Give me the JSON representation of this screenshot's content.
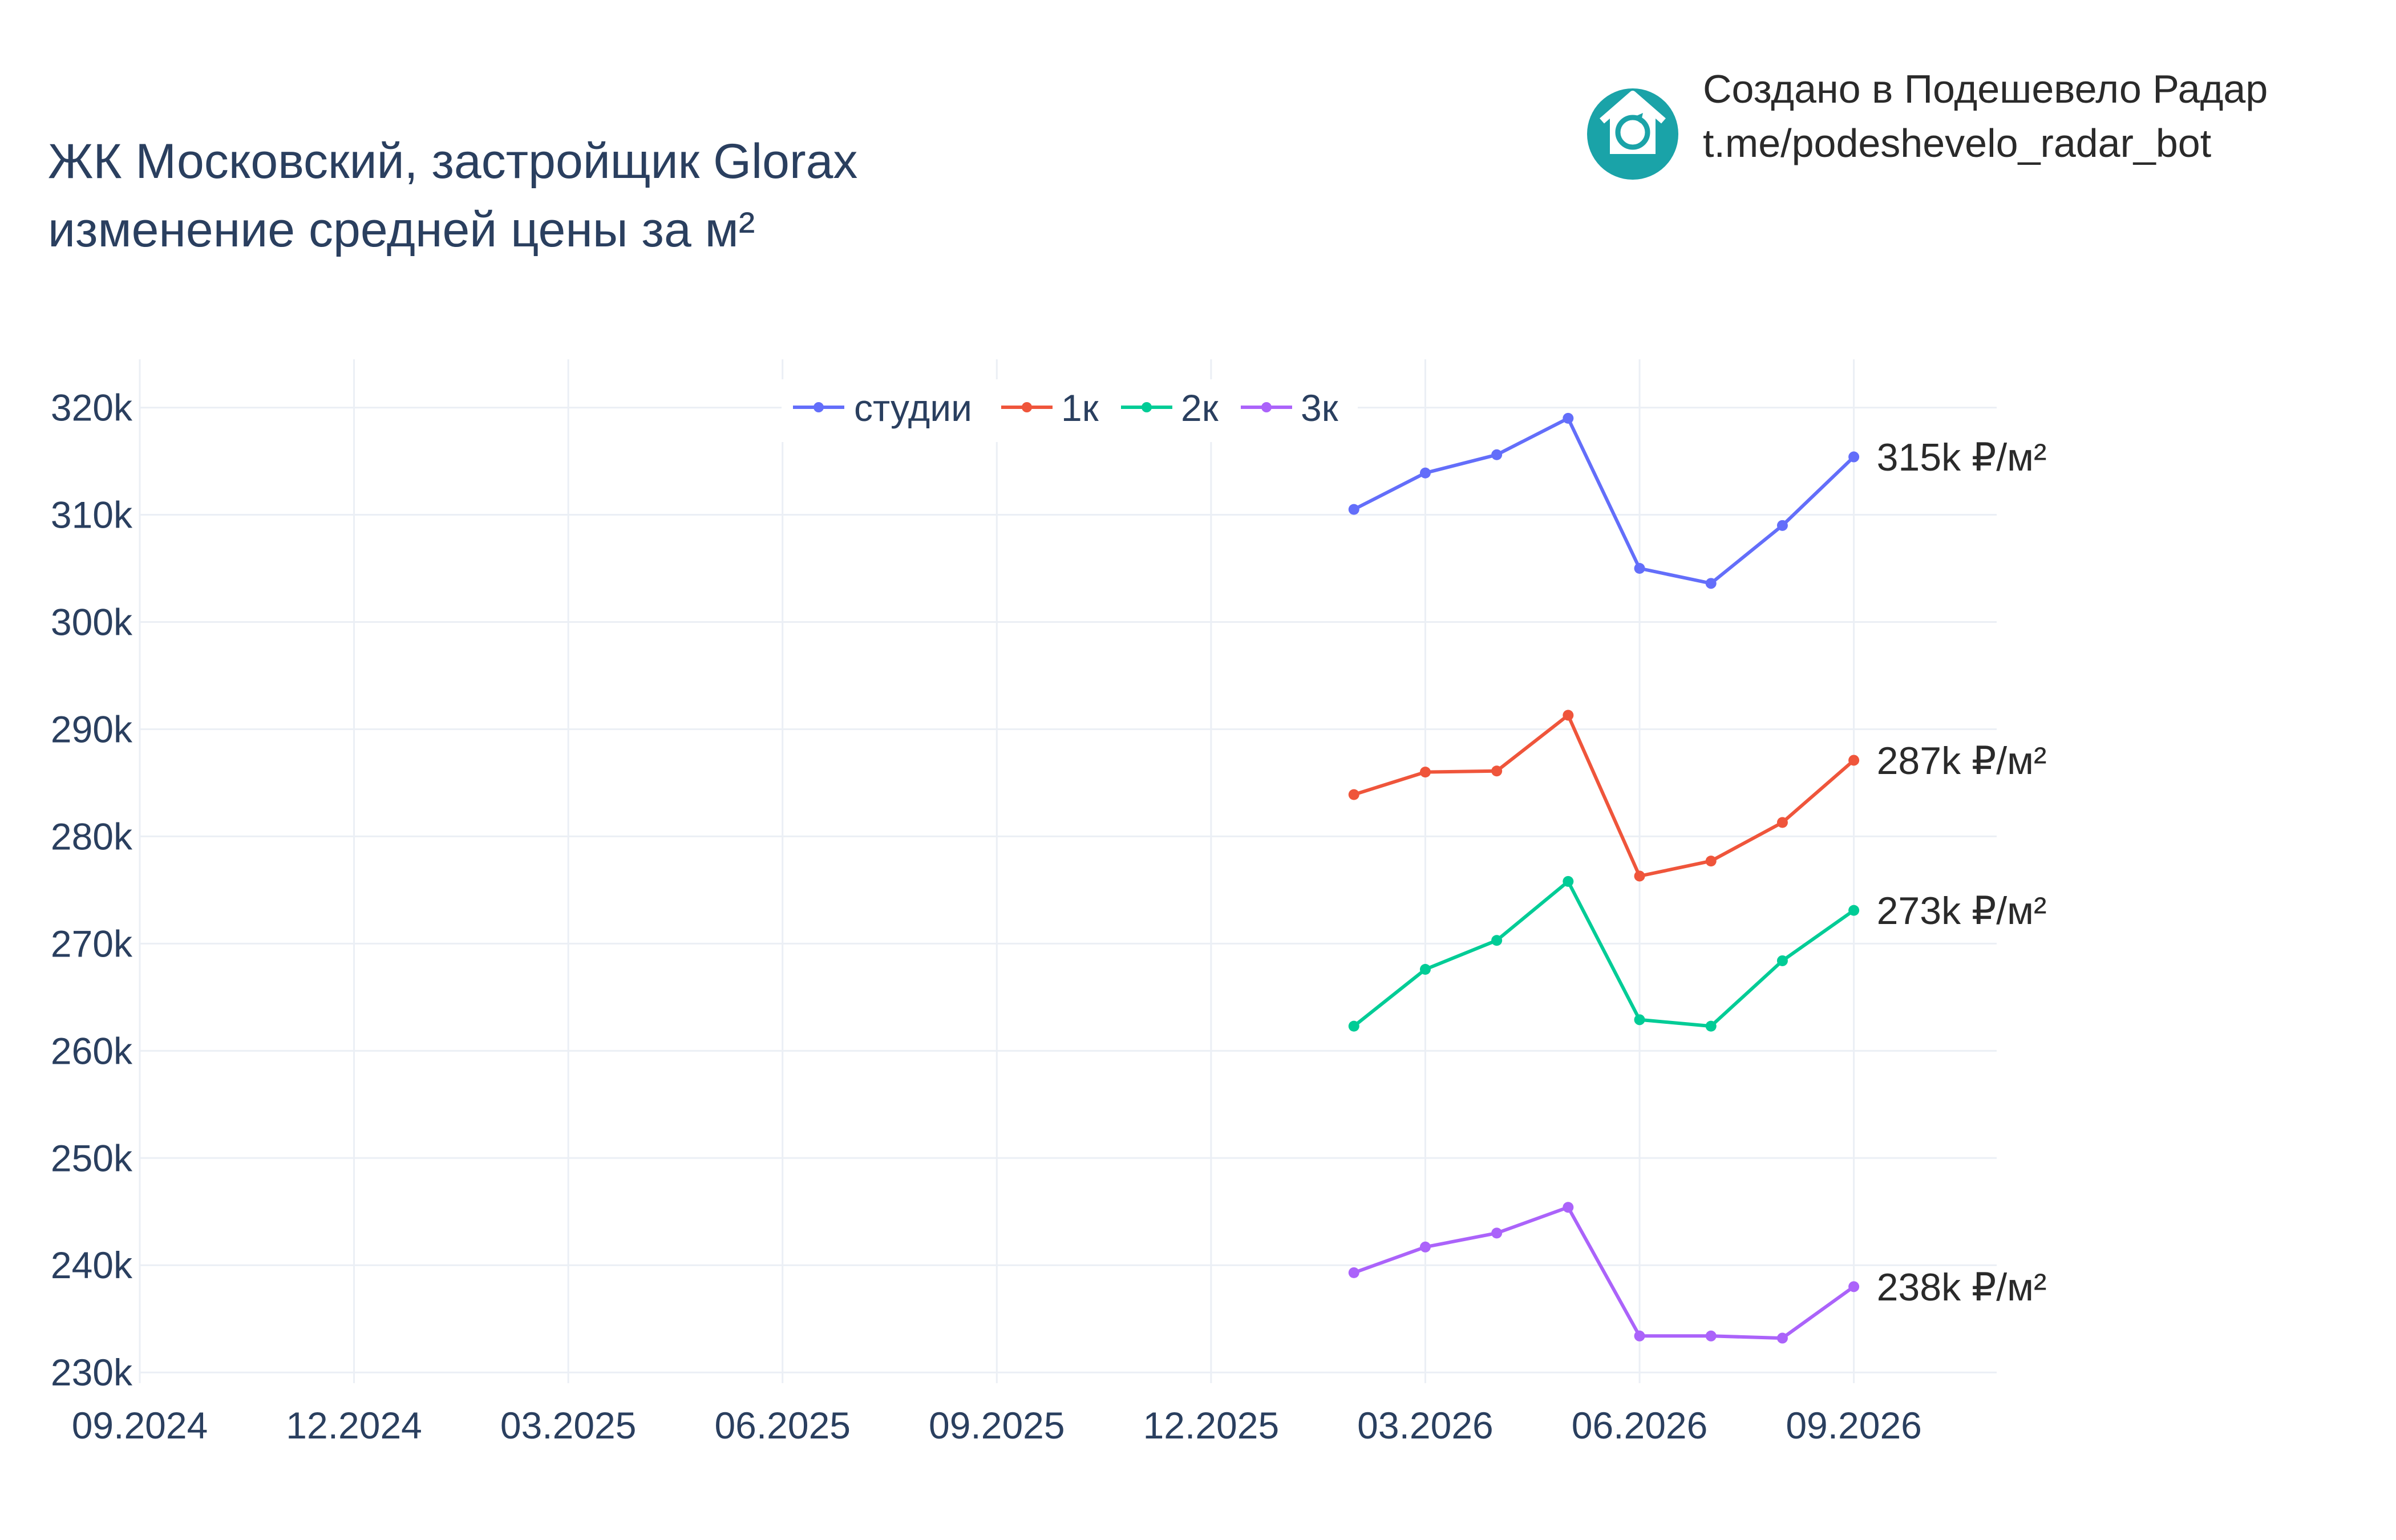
{
  "header": {
    "title_line1": "ЖК Московский, застройщик Glorax",
    "title_line2": "изменение средней цены за м²"
  },
  "branding": {
    "line1": "Создано в Подешевело Радар",
    "line2": "t.me/podeshevelo_radar_bot",
    "logo_icon": "house-refresh-icon",
    "logo_color": "#1aa3a8"
  },
  "chart_data": {
    "type": "line",
    "title": "ЖК Московский, застройщик Glorax изменение средней цены за м²",
    "xlabel": "",
    "ylabel": "",
    "x": [
      "2026-02",
      "2026-03",
      "2026-04",
      "2026-05",
      "2026-06",
      "2026-07",
      "2026-08",
      "2026-09"
    ],
    "x_ticks": [
      "09.2024",
      "12.2024",
      "03.2025",
      "06.2025",
      "09.2025",
      "12.2025",
      "03.2026",
      "06.2026",
      "09.2026"
    ],
    "y_ticks": [
      "230k",
      "240k",
      "250k",
      "260k",
      "270k",
      "280k",
      "290k",
      "300k",
      "310k",
      "320k"
    ],
    "ylim": [
      229000,
      324500
    ],
    "xlim": [
      "2024-09",
      "2026-11"
    ],
    "grid": true,
    "legend_placement": "top-center",
    "series": [
      {
        "name": "студии",
        "color": "#636efa",
        "values": [
          310500,
          313900,
          315600,
          319000,
          305000,
          303600,
          309000,
          315400
        ],
        "end_label": "315k ₽/м²"
      },
      {
        "name": "1к",
        "color": "#ef553b",
        "values": [
          283900,
          286000,
          286100,
          291300,
          276300,
          277700,
          281300,
          287100
        ],
        "end_label": "287k ₽/м²"
      },
      {
        "name": "2к",
        "color": "#00cc96",
        "values": [
          262300,
          267600,
          270300,
          275800,
          262900,
          262300,
          268400,
          273100
        ],
        "end_label": "273k ₽/м²"
      },
      {
        "name": "3к",
        "color": "#ab63fa",
        "values": [
          239300,
          241700,
          243000,
          245400,
          233400,
          233400,
          233200,
          238000
        ],
        "end_label": "238k ₽/м²"
      }
    ]
  }
}
